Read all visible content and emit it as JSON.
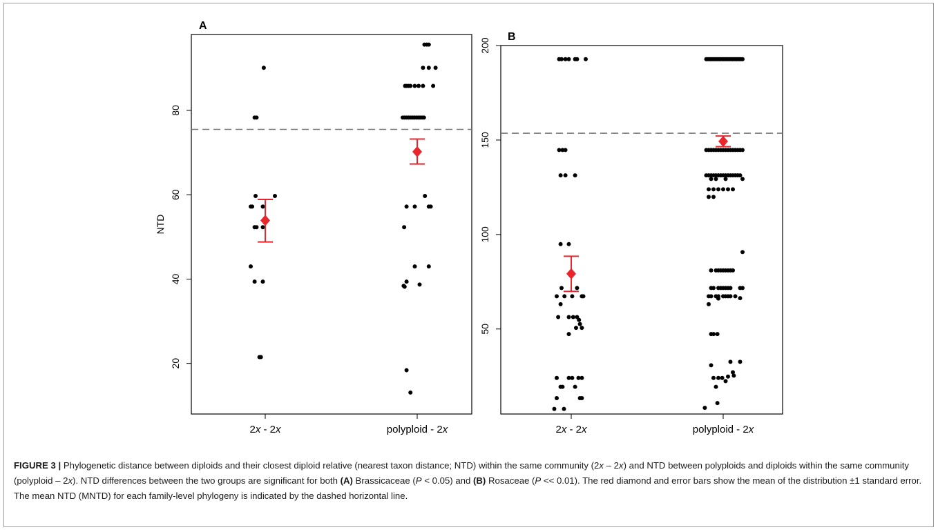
{
  "chart_data": [
    {
      "type": "scatter",
      "panel_label": "A",
      "ylabel": "NTD",
      "ylim": [
        8,
        98
      ],
      "yticks": [
        20,
        40,
        60,
        80
      ],
      "categories": [
        {
          "pre": "2",
          "var": "x",
          "mid": " - 2",
          "post": "x"
        },
        {
          "pre": "polyploid - 2",
          "var": "x",
          "mid": "",
          "post": ""
        }
      ],
      "dashed_line": 75.5,
      "means": [
        53.9,
        70.2
      ],
      "se_bounds": [
        [
          48.8,
          58.9
        ],
        [
          67.3,
          73.2
        ]
      ],
      "points": [
        [
          [
            -0.03,
            90.1
          ],
          [
            -0.22,
            78.3
          ],
          [
            -0.18,
            78.3
          ],
          [
            -0.3,
            57.2
          ],
          [
            -0.27,
            57.2
          ],
          [
            -0.2,
            59.7
          ],
          [
            -0.05,
            57.2
          ],
          [
            0.2,
            59.7
          ],
          [
            -0.22,
            52.3
          ],
          [
            -0.18,
            52.3
          ],
          [
            -0.05,
            52.3
          ],
          [
            -0.3,
            43.0
          ],
          [
            -0.22,
            39.4
          ],
          [
            -0.05,
            39.4
          ],
          [
            -0.12,
            21.5
          ],
          [
            -0.09,
            21.5
          ]
        ],
        [
          [
            0.15,
            95.6
          ],
          [
            0.2,
            95.6
          ],
          [
            0.24,
            95.6
          ],
          [
            0.24,
            90.1
          ],
          [
            0.12,
            90.1
          ],
          [
            0.38,
            90.1
          ],
          [
            -0.25,
            85.8
          ],
          [
            -0.22,
            85.8
          ],
          [
            -0.18,
            85.8
          ],
          [
            -0.14,
            85.8
          ],
          [
            -0.05,
            85.8
          ],
          [
            0.03,
            85.8
          ],
          [
            0.12,
            85.8
          ],
          [
            0.33,
            85.8
          ],
          [
            -0.3,
            78.3
          ],
          [
            -0.26,
            78.3
          ],
          [
            -0.22,
            78.3
          ],
          [
            -0.18,
            78.3
          ],
          [
            -0.14,
            78.3
          ],
          [
            -0.1,
            78.3
          ],
          [
            -0.06,
            78.3
          ],
          [
            -0.02,
            78.3
          ],
          [
            0.02,
            78.3
          ],
          [
            0.06,
            78.3
          ],
          [
            0.1,
            78.3
          ],
          [
            0.14,
            78.3
          ],
          [
            0.16,
            59.7
          ],
          [
            -0.22,
            57.2
          ],
          [
            -0.05,
            57.2
          ],
          [
            0.24,
            57.2
          ],
          [
            0.28,
            57.2
          ],
          [
            -0.27,
            52.3
          ],
          [
            -0.05,
            43.0
          ],
          [
            0.24,
            43.0
          ],
          [
            -0.22,
            39.4
          ],
          [
            -0.28,
            38.4
          ],
          [
            -0.26,
            38.2
          ],
          [
            0.05,
            38.7
          ],
          [
            -0.22,
            18.4
          ],
          [
            -0.14,
            13.1
          ]
        ]
      ]
    },
    {
      "type": "scatter",
      "panel_label": "B",
      "ylabel": "",
      "ylim": [
        5,
        200
      ],
      "yticks": [
        50,
        100,
        150,
        200
      ],
      "categories": [
        {
          "pre": "2",
          "var": "x",
          "mid": " - 2",
          "post": "x"
        },
        {
          "pre": "polyploid - 2",
          "var": "x",
          "mid": "",
          "post": ""
        }
      ],
      "dashed_line": 153.6,
      "means": [
        79.2,
        149.3
      ],
      "se_bounds": [
        [
          69.9,
          88.5
        ],
        [
          146.5,
          152.1
        ]
      ],
      "points": [
        [
          [
            -0.25,
            192.8
          ],
          [
            -0.2,
            192.8
          ],
          [
            -0.12,
            192.8
          ],
          [
            -0.05,
            192.8
          ],
          [
            0.08,
            192.8
          ],
          [
            0.12,
            192.8
          ],
          [
            0.3,
            192.8
          ],
          [
            -0.25,
            144.7
          ],
          [
            -0.18,
            144.7
          ],
          [
            -0.12,
            144.7
          ],
          [
            -0.22,
            131.3
          ],
          [
            -0.12,
            131.3
          ],
          [
            0.08,
            131.3
          ],
          [
            -0.22,
            94.9
          ],
          [
            -0.05,
            94.9
          ],
          [
            -0.2,
            71.7
          ],
          [
            0.12,
            71.7
          ],
          [
            -0.3,
            67.3
          ],
          [
            -0.22,
            63.1
          ],
          [
            -0.14,
            67.3
          ],
          [
            0.02,
            67.3
          ],
          [
            0.22,
            67.3
          ],
          [
            0.25,
            67.3
          ],
          [
            -0.27,
            56.3
          ],
          [
            -0.05,
            56.3
          ],
          [
            0.04,
            56.3
          ],
          [
            0.12,
            56.3
          ],
          [
            0.16,
            54.8
          ],
          [
            0.18,
            52.6
          ],
          [
            0.1,
            50.6
          ],
          [
            0.22,
            50.6
          ],
          [
            -0.05,
            47.3
          ],
          [
            -0.3,
            24.1
          ],
          [
            -0.22,
            19.4
          ],
          [
            -0.18,
            19.4
          ],
          [
            -0.05,
            24.1
          ],
          [
            0.02,
            24.1
          ],
          [
            0.15,
            24.1
          ],
          [
            0.22,
            24.1
          ],
          [
            0.08,
            19.4
          ],
          [
            0.18,
            13.4
          ],
          [
            0.22,
            13.4
          ],
          [
            -0.3,
            13.4
          ],
          [
            -0.35,
            7.7
          ],
          [
            -0.15,
            7.7
          ]
        ],
        [
          [
            -0.35,
            192.8
          ],
          [
            -0.32,
            192.8
          ],
          [
            -0.29,
            192.8
          ],
          [
            -0.26,
            192.8
          ],
          [
            -0.23,
            192.8
          ],
          [
            -0.2,
            192.8
          ],
          [
            -0.17,
            192.8
          ],
          [
            -0.14,
            192.8
          ],
          [
            -0.11,
            192.8
          ],
          [
            -0.08,
            192.8
          ],
          [
            -0.05,
            192.8
          ],
          [
            -0.02,
            192.8
          ],
          [
            0.01,
            192.8
          ],
          [
            0.04,
            192.8
          ],
          [
            0.07,
            192.8
          ],
          [
            0.1,
            192.8
          ],
          [
            0.13,
            192.8
          ],
          [
            0.16,
            192.8
          ],
          [
            0.19,
            192.8
          ],
          [
            0.22,
            192.8
          ],
          [
            0.25,
            192.8
          ],
          [
            0.28,
            192.8
          ],
          [
            0.31,
            192.8
          ],
          [
            0.34,
            192.8
          ],
          [
            0.37,
            192.8
          ],
          [
            0.4,
            192.8
          ],
          [
            -0.35,
            144.7
          ],
          [
            -0.3,
            144.7
          ],
          [
            -0.25,
            144.7
          ],
          [
            -0.2,
            144.7
          ],
          [
            -0.15,
            144.7
          ],
          [
            -0.1,
            144.7
          ],
          [
            -0.05,
            144.7
          ],
          [
            0.0,
            144.7
          ],
          [
            0.05,
            144.7
          ],
          [
            0.1,
            144.7
          ],
          [
            0.15,
            144.7
          ],
          [
            0.2,
            144.7
          ],
          [
            0.25,
            144.7
          ],
          [
            0.3,
            144.7
          ],
          [
            0.35,
            144.7
          ],
          [
            0.4,
            144.7
          ],
          [
            -0.35,
            131.3
          ],
          [
            -0.3,
            131.3
          ],
          [
            -0.25,
            131.3
          ],
          [
            -0.2,
            131.3
          ],
          [
            -0.15,
            131.3
          ],
          [
            -0.1,
            131.3
          ],
          [
            -0.05,
            131.3
          ],
          [
            0.0,
            131.3
          ],
          [
            0.05,
            131.3
          ],
          [
            0.1,
            131.3
          ],
          [
            0.15,
            131.3
          ],
          [
            0.2,
            131.3
          ],
          [
            0.25,
            131.3
          ],
          [
            0.3,
            131.3
          ],
          [
            0.35,
            131.3
          ],
          [
            0.4,
            129.4
          ],
          [
            -0.25,
            129.4
          ],
          [
            -0.15,
            129.4
          ],
          [
            0.05,
            129.4
          ],
          [
            -0.3,
            123.9
          ],
          [
            -0.2,
            123.9
          ],
          [
            -0.1,
            123.9
          ],
          [
            0.0,
            123.9
          ],
          [
            0.1,
            123.9
          ],
          [
            0.2,
            123.9
          ],
          [
            -0.3,
            119.9
          ],
          [
            -0.2,
            119.9
          ],
          [
            0.4,
            90.7
          ],
          [
            -0.25,
            81.0
          ],
          [
            -0.15,
            81.0
          ],
          [
            -0.1,
            81.0
          ],
          [
            -0.05,
            81.0
          ],
          [
            0.0,
            81.0
          ],
          [
            0.05,
            81.0
          ],
          [
            0.1,
            81.0
          ],
          [
            0.15,
            81.0
          ],
          [
            0.2,
            81.0
          ],
          [
            -0.25,
            71.7
          ],
          [
            -0.2,
            71.7
          ],
          [
            -0.1,
            71.7
          ],
          [
            -0.05,
            71.7
          ],
          [
            0.0,
            71.7
          ],
          [
            0.05,
            71.7
          ],
          [
            0.1,
            71.7
          ],
          [
            0.15,
            71.7
          ],
          [
            0.35,
            71.7
          ],
          [
            0.4,
            71.7
          ],
          [
            -0.3,
            67.3
          ],
          [
            -0.25,
            67.3
          ],
          [
            -0.15,
            67.3
          ],
          [
            -0.1,
            67.3
          ],
          [
            0.0,
            67.3
          ],
          [
            0.05,
            67.3
          ],
          [
            0.1,
            67.3
          ],
          [
            0.15,
            67.3
          ],
          [
            0.25,
            67.3
          ],
          [
            0.35,
            66.3
          ],
          [
            -0.3,
            63.1
          ],
          [
            -0.1,
            66.1
          ],
          [
            -0.25,
            47.3
          ],
          [
            -0.2,
            47.3
          ],
          [
            -0.12,
            47.3
          ],
          [
            -0.25,
            30.8
          ],
          [
            -0.2,
            24.1
          ],
          [
            -0.15,
            19.4
          ],
          [
            -0.1,
            24.1
          ],
          [
            -0.02,
            24.1
          ],
          [
            0.05,
            22.4
          ],
          [
            0.1,
            24.8
          ],
          [
            0.15,
            32.6
          ],
          [
            0.2,
            27.1
          ],
          [
            0.22,
            25.3
          ],
          [
            0.35,
            32.6
          ],
          [
            -0.38,
            8.3
          ],
          [
            -0.12,
            10.8
          ]
        ]
      ]
    }
  ],
  "caption": {
    "fig_label": "FIGURE 3 |",
    "seg1": " Phylogenetic distance between diploids and their closest diploid relative (nearest taxon distance; NTD) within the same community (",
    "s_2a": "2",
    "x": "x",
    "dash": " – ",
    "s_2b": "2",
    "seg2": ") and NTD between polyploids and diploids within the same community (polyploid – ",
    "s_2c": "2",
    "seg3": "). NTD differences between the two groups are significant for both ",
    "a": "(A)",
    "seg4": " Brassicaceae (",
    "p": "P",
    "seg5": " < 0.05) and ",
    "b": "(B)",
    "seg6": " Rosaceae (",
    "seg7": " << 0.01). The red diamond and error bars show the mean of the distribution ±1 standard error. The mean NTD (MNTD) for each family-level phylogeny is indicated by the dashed horizontal line."
  }
}
